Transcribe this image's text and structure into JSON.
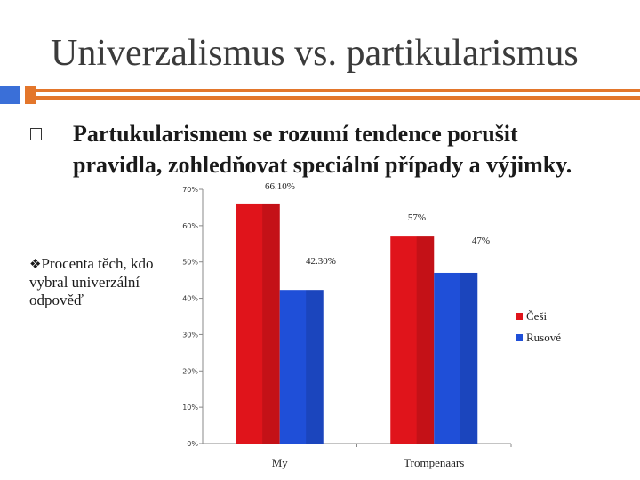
{
  "slide": {
    "title": "Univerzalismus vs. partikularismus",
    "bullet_text": "Partukularismem se rozumí tendence porušit pravidla, zohledňovat speciální případy a výjimky.",
    "side_note_marker": "❖",
    "side_note": "Procenta těch, kdo vybral univerzální odpověď"
  },
  "colors": {
    "accent_blue": "#3a6fd8",
    "accent_orange": "#e3762b"
  },
  "chart_data": {
    "type": "bar",
    "categories": [
      "My",
      "Trompenaars"
    ],
    "series": [
      {
        "name": "Češi",
        "values": [
          66.1,
          57
        ],
        "labels": [
          "66.10%",
          "57%"
        ],
        "color": "#e0141b"
      },
      {
        "name": "Rusové",
        "values": [
          42.3,
          47
        ],
        "labels": [
          "42.30%",
          "47%"
        ],
        "color": "#1f4fd8"
      }
    ],
    "y_ticks": [
      "0%",
      "10%",
      "20%",
      "30%",
      "40%",
      "50%",
      "60%",
      "70%"
    ],
    "ylim": [
      0,
      70
    ],
    "grid": false,
    "legend_position": "right"
  }
}
